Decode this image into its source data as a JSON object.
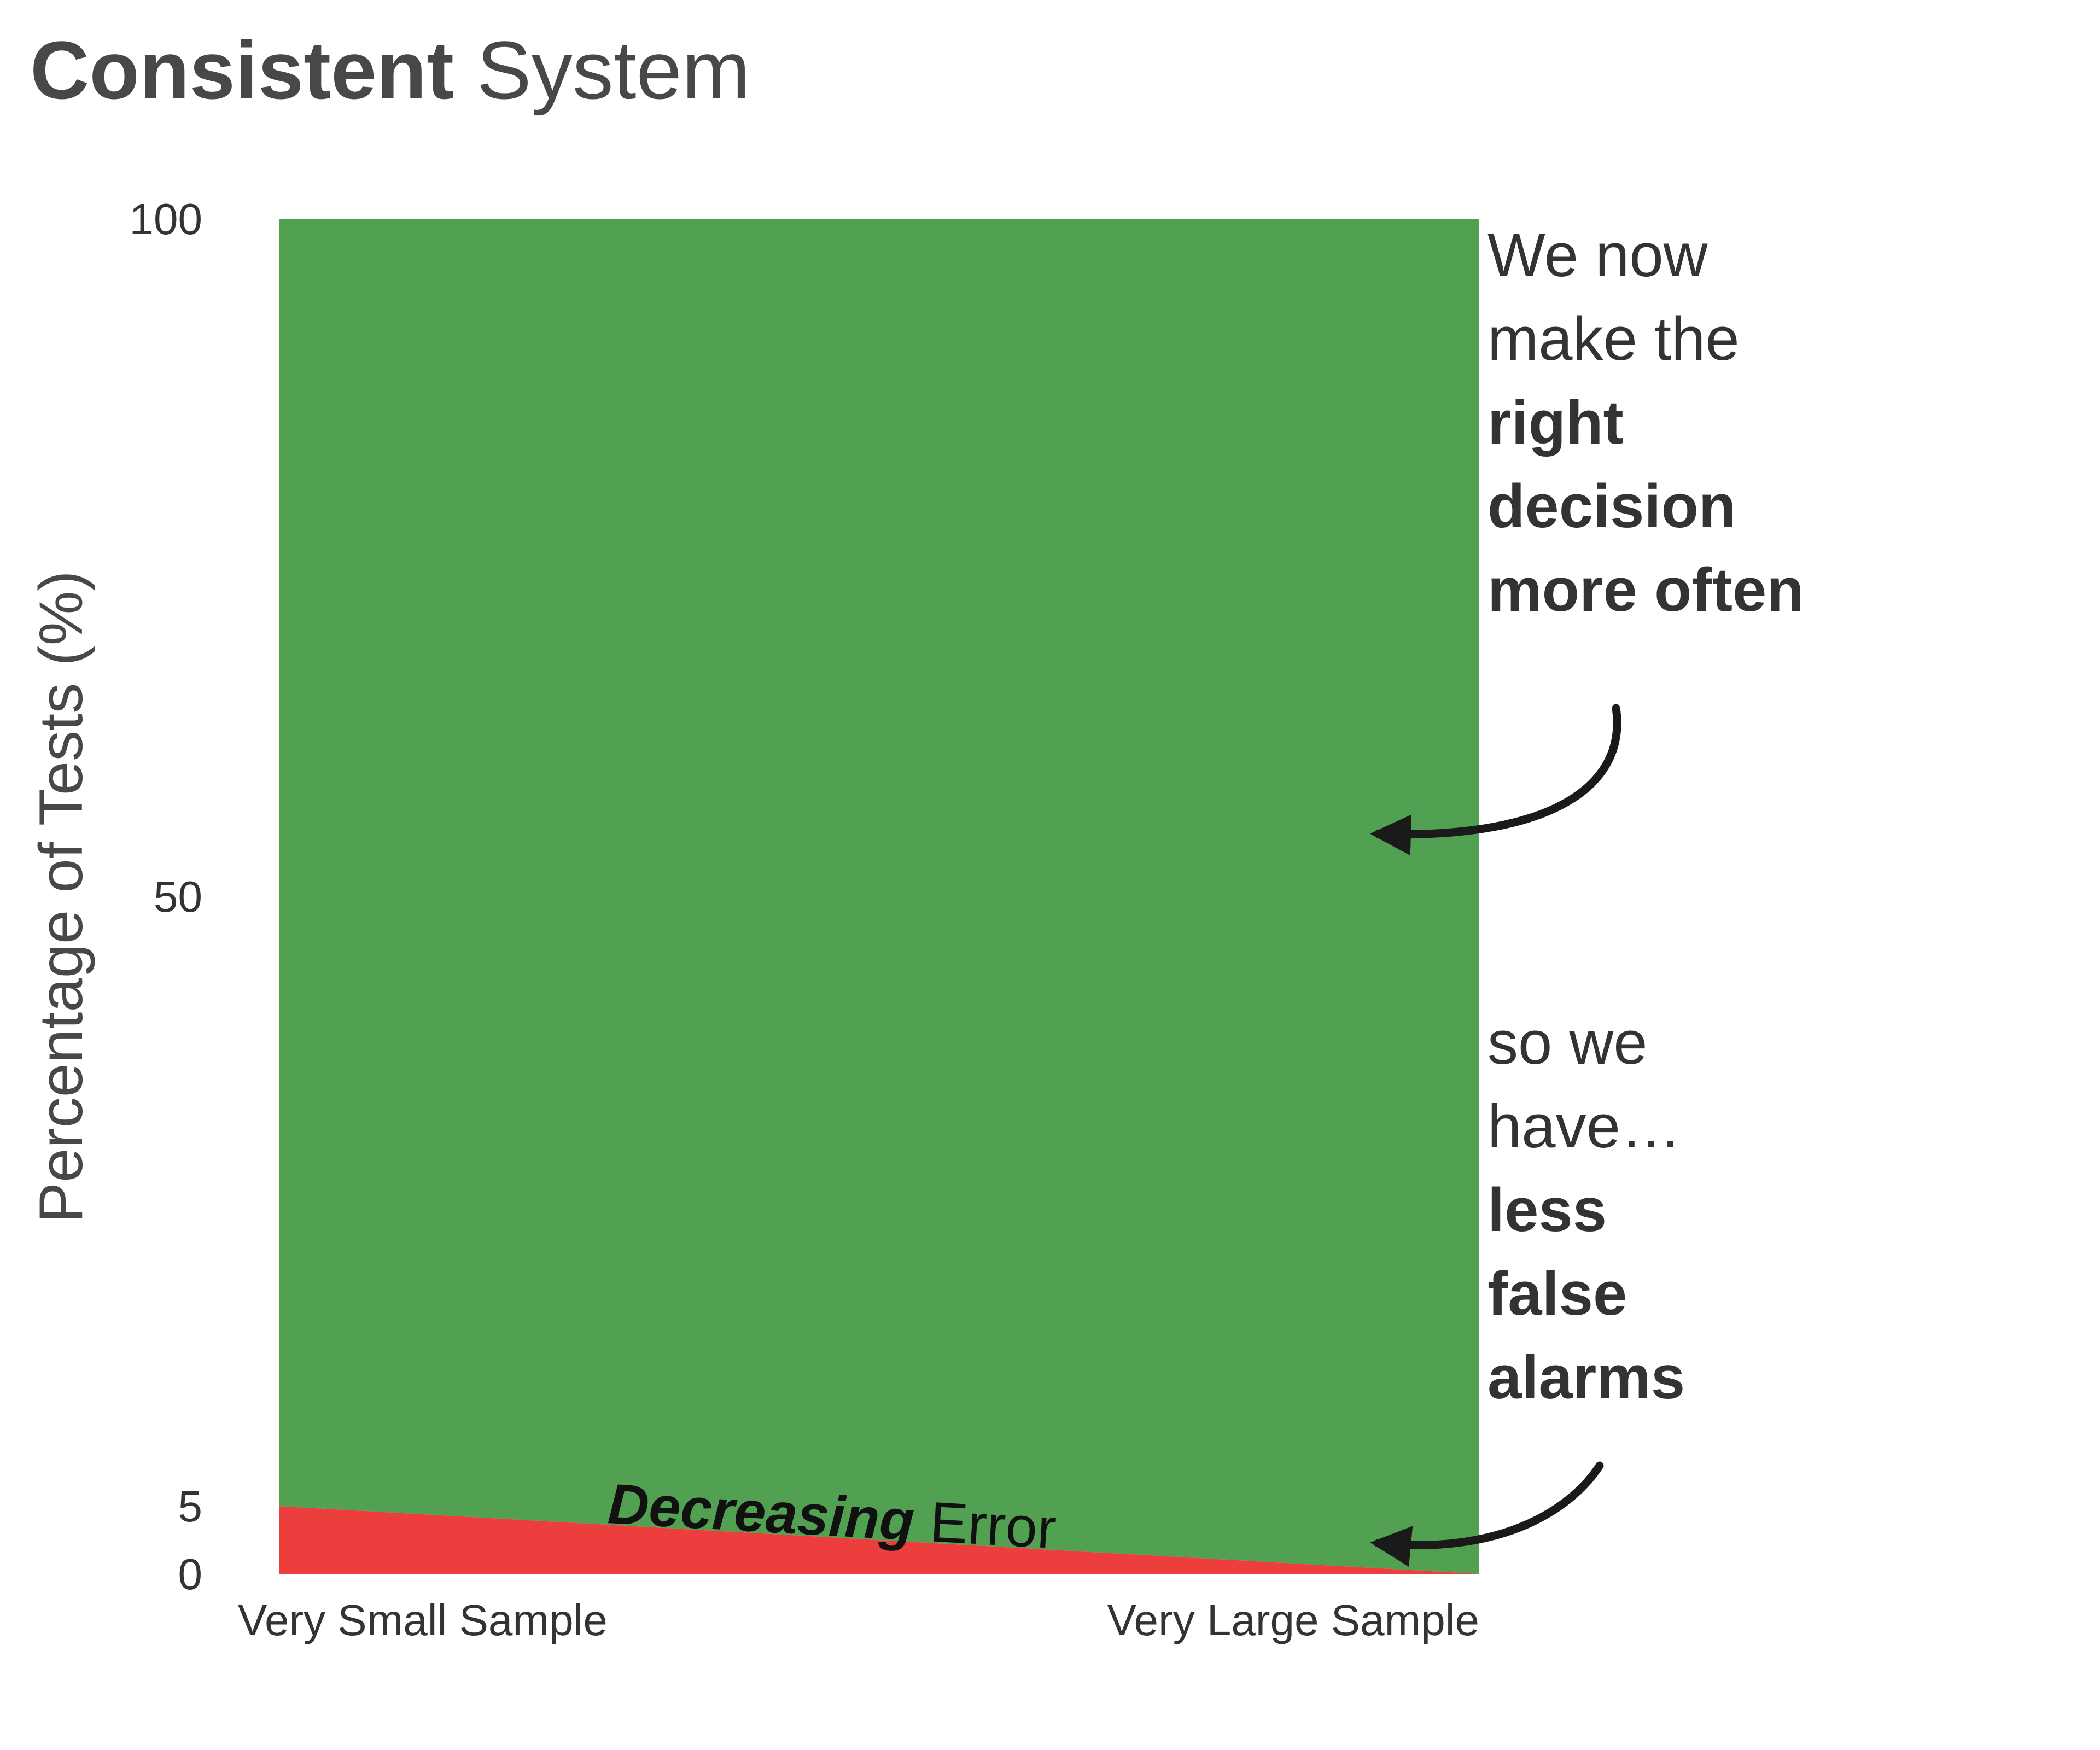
{
  "title": {
    "bold": "Consistent",
    "rest": " System"
  },
  "chart_data": {
    "type": "area",
    "stacked": true,
    "x": [
      "Very Small Sample",
      "Very Large Sample"
    ],
    "ylabel": "Percentage of Tests (%)",
    "xlabel": "",
    "ylim": [
      0,
      100
    ],
    "yticks": [
      "0",
      "5",
      "50",
      "100"
    ],
    "series": [
      {
        "key": "error",
        "values": [
          5,
          0
        ],
        "color": "#ed3e3e"
      },
      {
        "key": "right",
        "values": [
          95,
          100
        ],
        "color": "#52a152"
      }
    ],
    "band_label": {
      "bold_italic": "Decreasing",
      "rest": " Error"
    },
    "grid": false
  },
  "annotations": {
    "upper": {
      "lines": [
        {
          "text": "We now",
          "style": "normal",
          "color": "#333333"
        },
        {
          "text": "make the",
          "style": "normal",
          "color": "#333333"
        },
        {
          "text": "right",
          "style": "bold",
          "color": "#52a152"
        },
        {
          "text": "decision",
          "style": "bold",
          "color": "#52a152"
        },
        {
          "text": "more often",
          "style": "bold",
          "color": "#333333"
        }
      ]
    },
    "lower": {
      "lines": [
        {
          "text": "so we",
          "style": "normal",
          "color": "#333333"
        },
        {
          "text": "have…",
          "style": "normal",
          "color": "#333333"
        },
        {
          "text": "less",
          "style": "bold",
          "color": "#333333"
        },
        {
          "text": "false",
          "style": "bold",
          "color": "#ed3e3e"
        },
        {
          "text": "alarms",
          "style": "bold",
          "color": "#ed3e3e"
        }
      ]
    }
  }
}
